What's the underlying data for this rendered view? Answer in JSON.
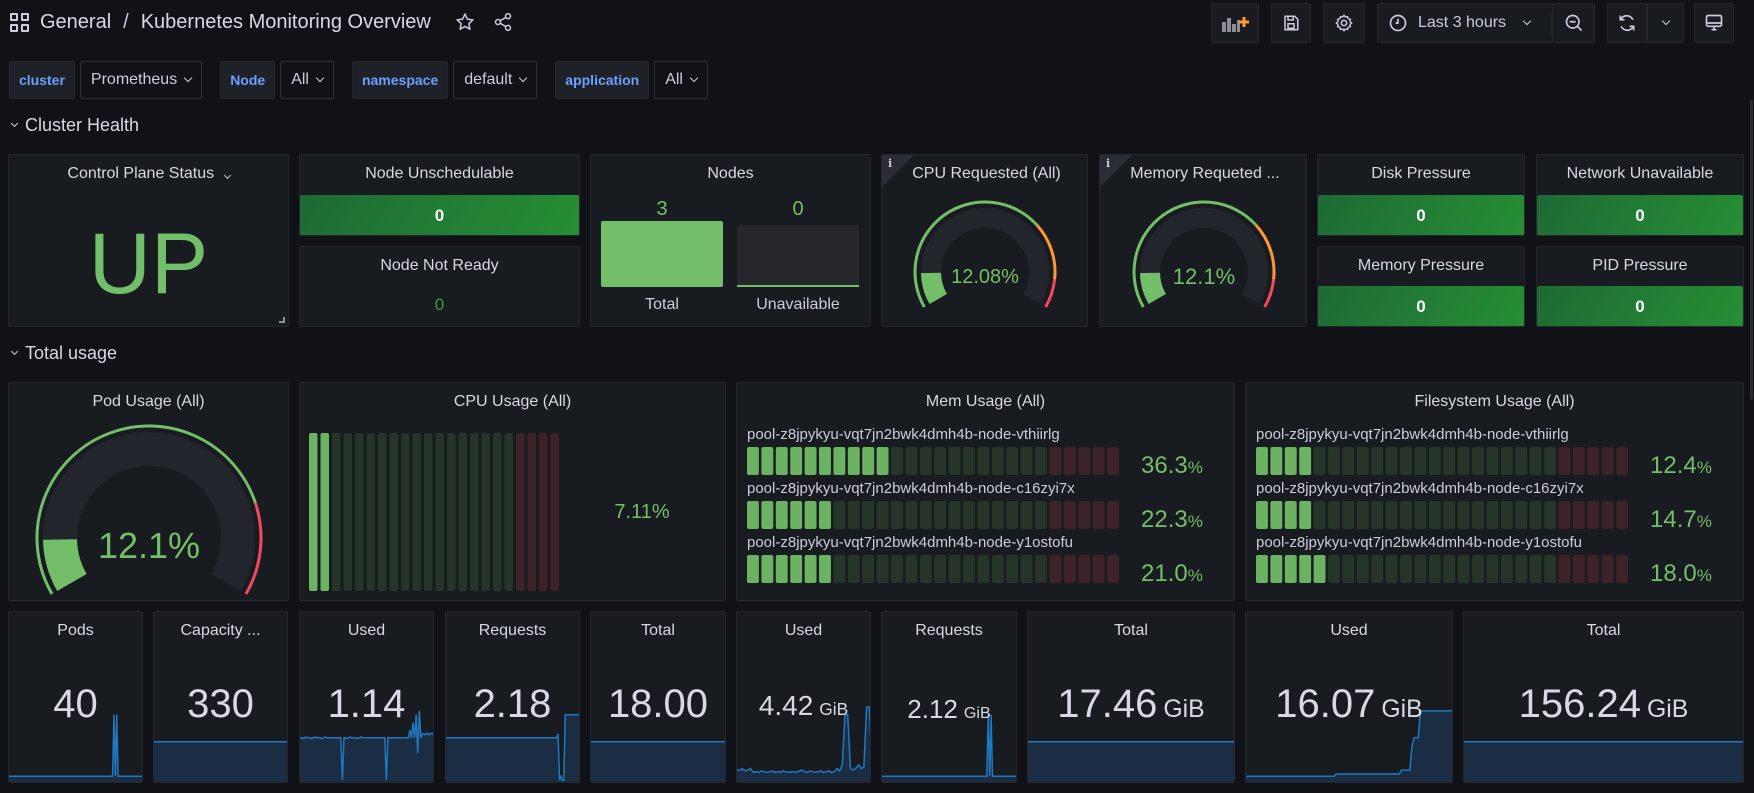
{
  "header": {
    "folder": "General",
    "separator": "/",
    "title": "Kubernetes Monitoring Overview",
    "icons": [
      "dashboards-grid-icon",
      "star-icon",
      "share-icon"
    ]
  },
  "toolbar": {
    "add_panel_icon": "add-panel-icon",
    "save_icon": "save-icon",
    "settings_icon": "gear-icon",
    "time_range": "Last 3 hours",
    "zoom_out_icon": "zoom-out-icon",
    "refresh_icon": "refresh-icon",
    "tv_mode_icon": "monitor-icon"
  },
  "variables": [
    {
      "label": "cluster",
      "value": "Prometheus"
    },
    {
      "label": "Node",
      "value": "All"
    },
    {
      "label": "namespace",
      "value": "default"
    },
    {
      "label": "application",
      "value": "All"
    }
  ],
  "rows": {
    "cluster_health": "Cluster Health",
    "total_usage": "Total usage"
  },
  "colors": {
    "green": "#73bf69",
    "dark_green": "#1e6a35",
    "orange": "#ff9830",
    "red": "#f2495c",
    "blue_series": "#1f78c1",
    "text": "#d8d9e3",
    "variable_label": "#6e9fff"
  },
  "cluster_health": {
    "control_plane": {
      "title": "Control Plane Status",
      "value": "UP"
    },
    "node_unschedulable": {
      "title": "Node Unschedulable",
      "value": "0"
    },
    "node_not_ready": {
      "title": "Node Not Ready",
      "value": "0"
    },
    "nodes": {
      "title": "Nodes",
      "bars": [
        {
          "label": "Total",
          "value": "3",
          "num": 3
        },
        {
          "label": "Unavailable",
          "value": "0",
          "num": 0
        }
      ],
      "max": 3
    },
    "cpu_requested": {
      "title": "CPU Requested (All)",
      "value": "12.08%",
      "percent": 12.08,
      "thresholds": [
        {
          "to": 70,
          "color": "#73bf69"
        },
        {
          "to": 90,
          "color": "#ff9830"
        },
        {
          "to": 100,
          "color": "#f2495c"
        }
      ]
    },
    "memory_requested": {
      "title": "Memory Requeted ...",
      "value": "12.1%",
      "percent": 12.1,
      "thresholds": [
        {
          "to": 70,
          "color": "#73bf69"
        },
        {
          "to": 90,
          "color": "#ff9830"
        },
        {
          "to": 100,
          "color": "#f2495c"
        }
      ]
    },
    "disk_pressure": {
      "title": "Disk Pressure",
      "value": "0"
    },
    "network_unavailable": {
      "title": "Network Unavailable",
      "value": "0"
    },
    "memory_pressure": {
      "title": "Memory Pressure",
      "value": "0"
    },
    "pid_pressure": {
      "title": "PID Pressure",
      "value": "0"
    }
  },
  "total_usage": {
    "pod_usage": {
      "title": "Pod Usage (All)",
      "value": "12.1%",
      "percent": 12.1,
      "thresholds": [
        {
          "to": 80,
          "color": "#73bf69"
        },
        {
          "to": 100,
          "color": "#f2495c"
        }
      ]
    },
    "cpu_usage": {
      "title": "CPU Usage (All)",
      "value": "7.11%",
      "segments_total": 22,
      "segments_lit": 2,
      "segments_red": 4
    },
    "mem_usage": {
      "title": "Mem Usage (All)",
      "segments_total": 26,
      "segments_red": 5,
      "items": [
        {
          "node": "pool-z8jpykyu-vqt7jn2bwk4dmh4b-node-vthiirlg",
          "value": "36.3",
          "unit": "%",
          "lit": 10
        },
        {
          "node": "pool-z8jpykyu-vqt7jn2bwk4dmh4b-node-c16zyi7x",
          "value": "22.3",
          "unit": "%",
          "lit": 6
        },
        {
          "node": "pool-z8jpykyu-vqt7jn2bwk4dmh4b-node-y1ostofu",
          "value": "21.0",
          "unit": "%",
          "lit": 6
        }
      ]
    },
    "fs_usage": {
      "title": "Filesystem Usage (All)",
      "segments_total": 26,
      "segments_red": 5,
      "items": [
        {
          "node": "pool-z8jpykyu-vqt7jn2bwk4dmh4b-node-vthiirlg",
          "value": "12.4",
          "unit": "%",
          "lit": 4
        },
        {
          "node": "pool-z8jpykyu-vqt7jn2bwk4dmh4b-node-c16zyi7x",
          "value": "14.7",
          "unit": "%",
          "lit": 4
        },
        {
          "node": "pool-z8jpykyu-vqt7jn2bwk4dmh4b-node-y1ostofu",
          "value": "18.0",
          "unit": "%",
          "lit": 5
        }
      ]
    }
  },
  "stats": [
    {
      "title": "Pods",
      "value": "40",
      "unit": "",
      "spark": [
        0.1,
        0.1,
        0.1,
        0.1,
        0.1,
        0.1,
        0.1,
        0.1,
        0.1,
        0.1,
        0.1,
        0.1,
        0.1,
        0.1,
        0.1,
        0.1,
        0.1,
        0.1,
        0.1,
        0.1,
        0.1,
        0.1,
        0.1,
        0.1,
        0.1,
        0.1,
        0.1,
        0.1,
        0.1,
        0.1,
        0.1,
        0.1,
        0.1,
        0.1,
        0.1,
        0.1,
        0.1,
        0.1,
        0.1,
        0.1,
        0.1,
        0.1,
        0.1,
        0.1,
        0.1,
        0.1,
        0.1,
        0.1,
        0.1,
        0.1,
        0.1,
        0.1,
        0.1,
        0.1,
        0.1,
        0.1,
        0.1,
        0.1,
        0.1,
        0.1,
        0.1,
        0.1,
        0.1,
        0.1,
        0.1,
        0.1,
        0.1,
        0.1,
        0.1,
        0.1,
        0.1,
        0.1,
        0.1,
        0.1,
        0.1,
        0.1,
        0.1,
        0.9,
        0.1,
        0.9,
        0.1,
        0.1,
        0.1,
        0.1,
        0.1,
        0.1,
        0.1,
        0.1,
        0.1,
        0.1,
        0.1,
        0.1,
        0.1,
        0.1,
        0.1,
        0.1,
        0.1,
        0.1,
        0.1,
        0.1
      ]
    },
    {
      "title": "Capacity ...",
      "value": "330",
      "unit": "",
      "spark": [
        0.55,
        0.55
      ]
    },
    {
      "title": "Used",
      "value": "1.14",
      "unit": "",
      "spark": [
        0.6,
        0.6,
        0.59,
        0.6,
        0.61,
        0.6,
        0.6,
        0.59,
        0.6,
        0.6,
        0.61,
        0.6,
        0.6,
        0.6,
        0.59,
        0.6,
        0.61,
        0.6,
        0.6,
        0.6,
        0.6,
        0.6,
        0.6,
        0.6,
        0.6,
        0.6,
        0.6,
        0.05,
        0.6,
        0.6,
        0.59,
        0.6,
        0.61,
        0.6,
        0.6,
        0.6,
        0.59,
        0.6,
        0.6,
        0.61,
        0.6,
        0.6,
        0.6,
        0.6,
        0.6,
        0.6,
        0.6,
        0.6,
        0.6,
        0.6,
        0.6,
        0.6,
        0.6,
        0.6,
        0.6,
        0.05,
        0.6,
        0.6,
        0.6,
        0.6,
        0.6,
        0.6,
        0.6,
        0.6,
        0.6,
        0.6,
        0.6,
        0.6,
        0.6,
        0.6,
        0.7,
        0.6,
        0.8,
        0.6,
        0.9,
        0.4,
        0.95,
        0.6,
        0.65,
        0.65,
        0.64,
        0.66,
        0.64,
        0.65,
        0.66,
        0.64,
        0.7
      ]
    },
    {
      "title": "Requests",
      "value": "2.18",
      "unit": "",
      "spark": [
        0.6,
        0.6,
        0.6,
        0.6,
        0.6,
        0.6,
        0.6,
        0.6,
        0.6,
        0.6,
        0.6,
        0.6,
        0.6,
        0.6,
        0.6,
        0.6,
        0.6,
        0.6,
        0.6,
        0.6,
        0.6,
        0.6,
        0.6,
        0.6,
        0.6,
        0.6,
        0.6,
        0.6,
        0.6,
        0.6,
        0.6,
        0.6,
        0.6,
        0.6,
        0.6,
        0.6,
        0.6,
        0.6,
        0.6,
        0.6,
        0.6,
        0.6,
        0.6,
        0.6,
        0.6,
        0.6,
        0.6,
        0.6,
        0.6,
        0.6,
        0.6,
        0.6,
        0.6,
        0.6,
        0.6,
        0.6,
        0.6,
        0.6,
        0.6,
        0.6,
        0.6,
        0.6,
        0.6,
        0.6,
        0.6,
        0.6,
        0.6,
        0.6,
        0.6,
        0.6,
        0.6,
        0.6,
        0.6,
        0.6,
        0.6,
        0.6,
        0.6,
        0.6,
        0.65,
        0.05,
        0.1,
        0.05,
        0.05,
        0.9,
        0.9,
        0.9,
        0.9,
        0.9,
        0.9,
        0.9,
        0.9,
        0.9,
        0.9,
        0.9,
        0.9
      ]
    },
    {
      "title": "Total",
      "value": "18.00",
      "unit": "",
      "spark": [
        0.55,
        0.55
      ]
    },
    {
      "title": "Used",
      "value": "4.42",
      "unit": "GiB",
      "spark": [
        0.18,
        0.18,
        0.2,
        0.17,
        0.18,
        0.2,
        0.15,
        0.16,
        0.15,
        0.17,
        0.16,
        0.15,
        0.16,
        0.17,
        0.15,
        0.16,
        0.15,
        0.17,
        0.16,
        0.15,
        0.16,
        0.16,
        0.15,
        0.17,
        0.18,
        0.16,
        0.15,
        0.17,
        0.16,
        0.15,
        0.16,
        0.17,
        0.15,
        0.16,
        0.17,
        0.15,
        0.16,
        0.2,
        0.17,
        0.25,
        0.9,
        0.9,
        0.2,
        0.18,
        0.2,
        0.25,
        0.2,
        0.22,
        1.0,
        1.0,
        0.25
      ]
    },
    {
      "title": "Requests",
      "value": "2.12",
      "unit": "GiB",
      "spark": [
        0.1,
        0.1,
        0.1,
        0.1,
        0.1,
        0.1,
        0.1,
        0.1,
        0.1,
        0.1,
        0.1,
        0.1,
        0.1,
        0.1,
        0.1,
        0.1,
        0.1,
        0.1,
        0.1,
        0.1,
        0.1,
        0.1,
        0.1,
        0.1,
        0.1,
        0.1,
        0.1,
        0.1,
        0.1,
        0.1,
        0.1,
        0.1,
        0.1,
        0.1,
        0.1,
        0.1,
        0.1,
        0.1,
        0.1,
        0.1,
        0.1,
        0.1,
        0.1,
        0.1,
        0.1,
        0.1,
        0.1,
        0.1,
        0.1,
        0.1,
        0.1,
        0.1,
        0.1,
        0.1,
        0.1,
        0.1,
        0.1,
        0.1,
        0.1,
        0.1,
        0.1,
        0.1,
        0.1,
        0.1,
        0.1,
        0.1,
        0.1,
        0.1,
        0.1,
        0.1,
        0.1,
        0.1,
        0.1,
        0.1,
        0.1,
        0.9,
        0.1,
        0.9,
        0.1,
        0.1,
        0.1,
        0.1,
        0.1,
        0.1,
        0.1,
        0.1,
        0.1,
        0.1,
        0.1,
        0.1,
        0.1,
        0.1,
        0.1,
        0.1,
        0.1,
        0.1,
        0.1
      ]
    },
    {
      "title": "Total",
      "value": "17.46",
      "unit": "GiB",
      "spark": [
        0.55,
        0.55
      ]
    },
    {
      "title": "Used",
      "value": "16.07",
      "unit": "GiB",
      "spark": [
        0.1,
        0.1,
        0.1,
        0.1,
        0.1,
        0.1,
        0.1,
        0.1,
        0.1,
        0.1,
        0.1,
        0.1,
        0.1,
        0.1,
        0.1,
        0.1,
        0.1,
        0.1,
        0.1,
        0.1,
        0.1,
        0.1,
        0.1,
        0.1,
        0.1,
        0.1,
        0.1,
        0.1,
        0.1,
        0.1,
        0.1,
        0.1,
        0.1,
        0.1,
        0.1,
        0.1,
        0.1,
        0.1,
        0.1,
        0.1,
        0.1,
        0.1,
        0.1,
        0.13,
        0.13,
        0.13,
        0.13,
        0.13,
        0.13,
        0.13,
        0.13,
        0.13,
        0.13,
        0.13,
        0.13,
        0.13,
        0.13,
        0.13,
        0.13,
        0.13,
        0.13,
        0.13,
        0.13,
        0.13,
        0.13,
        0.13,
        0.13,
        0.13,
        0.13,
        0.13,
        0.13,
        0.13,
        0.13,
        0.13,
        0.18,
        0.18,
        0.18,
        0.18,
        0.18,
        0.5,
        0.6,
        0.6,
        0.6,
        0.95,
        0.95,
        0.95,
        0.95,
        0.95,
        0.95,
        0.95,
        0.95,
        0.95,
        0.95,
        0.95,
        0.95,
        0.95,
        0.95,
        0.95,
        0.95,
        0.95
      ]
    },
    {
      "title": "Total",
      "value": "156.24",
      "unit": "GiB",
      "spark": [
        0.55,
        0.55
      ]
    }
  ]
}
